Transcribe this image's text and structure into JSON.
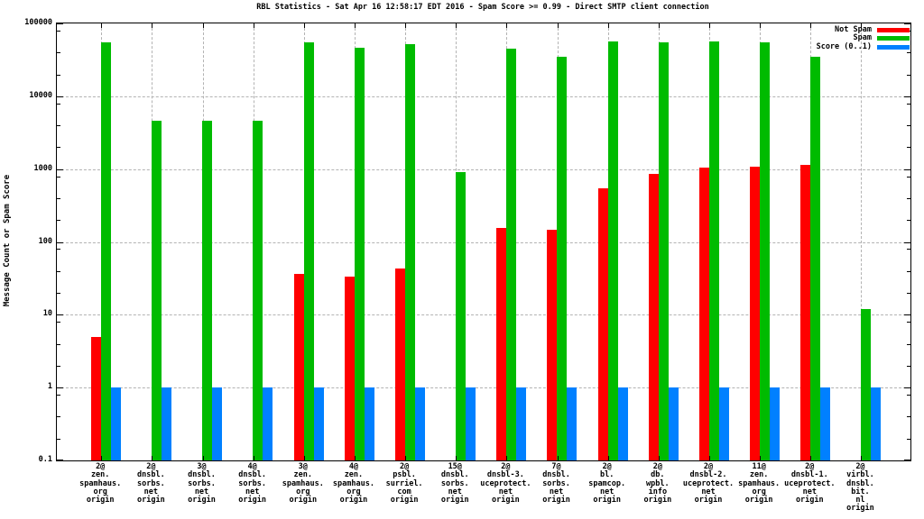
{
  "chart_data": {
    "type": "bar",
    "title": "RBL Statistics - Sat Apr 16 12:58:17 EDT 2016 - Spam Score >= 0.99 - Direct SMTP client connection",
    "ylabel": "Message Count or Spam Score",
    "xlabel": "",
    "y_scale": "log",
    "ylim": [
      0.1,
      100000
    ],
    "y_tick_labels": [
      "100000",
      "10000",
      "1000",
      "100",
      "10",
      "1",
      "0.1"
    ],
    "y_tick_values": [
      100000,
      10000,
      1000,
      100,
      10,
      1,
      0.1
    ],
    "grid": true,
    "legend_position": "top-right-inside",
    "background_color": "#ffffff",
    "grid_color": "#b3b3b3",
    "axis_color": "#000000",
    "categories": [
      [
        "2@",
        "zen.",
        "spamhaus.",
        "org",
        "origin"
      ],
      [
        "2@",
        "dnsbl.",
        "sorbs.",
        "net",
        "origin"
      ],
      [
        "3@",
        "dnsbl.",
        "sorbs.",
        "net",
        "origin"
      ],
      [
        "4@",
        "dnsbl.",
        "sorbs.",
        "net",
        "origin"
      ],
      [
        "3@",
        "zen.",
        "spamhaus.",
        "org",
        "origin"
      ],
      [
        "4@",
        "zen.",
        "spamhaus.",
        "org",
        "origin"
      ],
      [
        "2@",
        "psbl.",
        "surriel.",
        "com",
        "origin"
      ],
      [
        "15@",
        "dnsbl.",
        "sorbs.",
        "net",
        "origin"
      ],
      [
        "2@",
        "dnsbl-3.",
        "uceprotect.",
        "net",
        "origin"
      ],
      [
        "7@",
        "dnsbl.",
        "sorbs.",
        "net",
        "origin"
      ],
      [
        "2@",
        "bl.",
        "spamcop.",
        "net",
        "origin"
      ],
      [
        "2@",
        "db.",
        "wpbl.",
        "info",
        "origin"
      ],
      [
        "2@",
        "dnsbl-2.",
        "uceprotect.",
        "net",
        "origin"
      ],
      [
        "11@",
        "zen.",
        "spamhaus.",
        "org",
        "origin"
      ],
      [
        "2@",
        "dnsbl-1.",
        "uceprotect.",
        "net",
        "origin"
      ],
      [
        "2@",
        "virbl.",
        "dnsbl.",
        "bit.",
        "nl",
        "origin"
      ]
    ],
    "series": [
      {
        "name": "Not Spam",
        "color": "#ff0000",
        "values": [
          5,
          null,
          null,
          null,
          36,
          33,
          43,
          null,
          155,
          145,
          550,
          870,
          1050,
          1070,
          1150,
          null
        ]
      },
      {
        "name": "Spam",
        "color": "#00bb00",
        "values": [
          55000,
          4600,
          4600,
          4600,
          55000,
          46000,
          52000,
          900,
          45000,
          35000,
          57000,
          55000,
          56000,
          55000,
          35000,
          12
        ]
      },
      {
        "name": "Score (0..1)",
        "color": "#0080ff",
        "values": [
          1,
          1,
          1,
          1,
          1,
          1,
          1,
          1,
          1,
          1,
          1,
          1,
          1,
          1,
          1,
          1
        ]
      }
    ]
  }
}
